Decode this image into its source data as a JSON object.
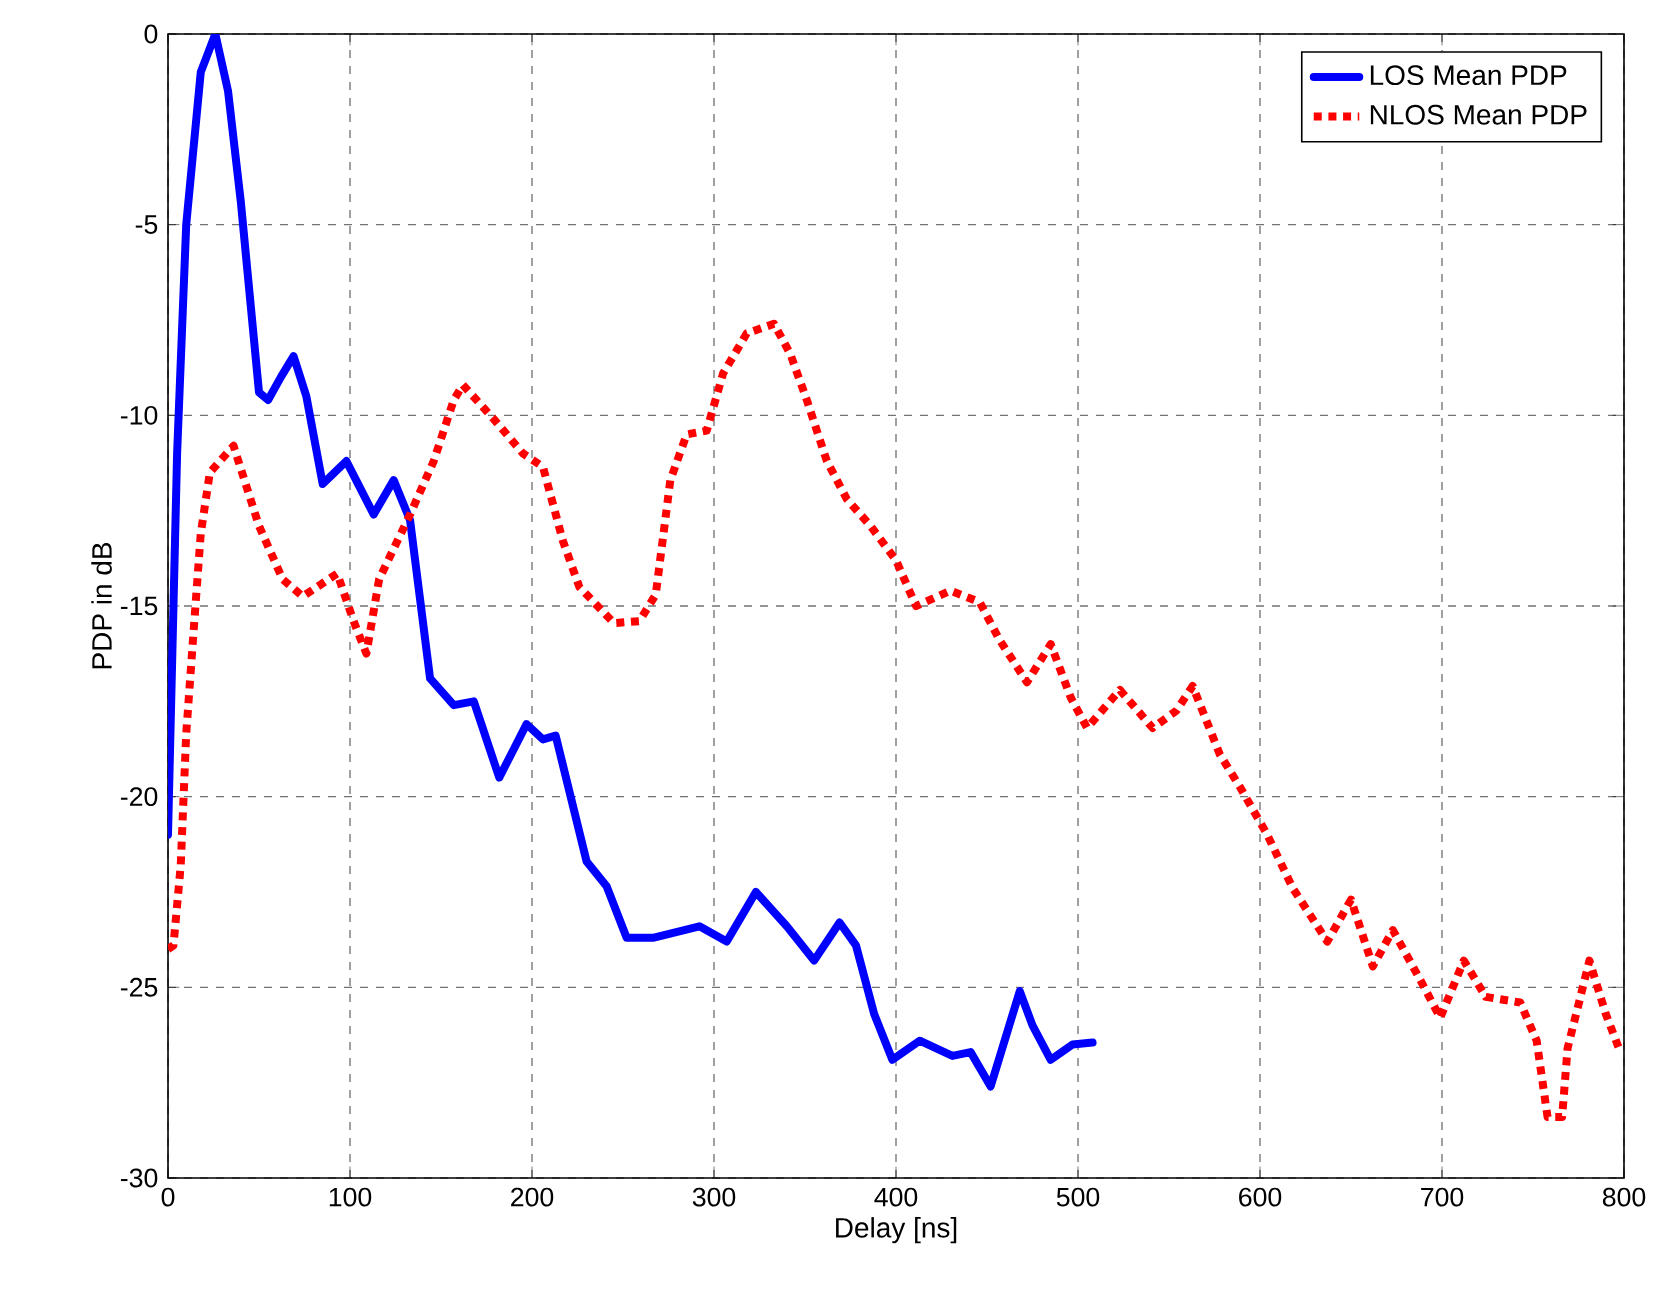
{
  "chart_data": {
    "type": "line",
    "xlabel": "Delay [ns]",
    "ylabel": "PDP in dB",
    "xlim": [
      0,
      800
    ],
    "ylim": [
      -30,
      0
    ],
    "xticks": [
      0,
      100,
      200,
      300,
      400,
      500,
      600,
      700,
      800
    ],
    "yticks": [
      -30,
      -25,
      -20,
      -15,
      -10,
      -5,
      0
    ],
    "grid": true,
    "legend": "top right",
    "marker": "none",
    "series": [
      {
        "name": "LOS Mean PDP",
        "color": "#0000ff",
        "line_style": "solid",
        "x": [
          0,
          5,
          10,
          18,
          26,
          33,
          40,
          50,
          55,
          62,
          69,
          76,
          85,
          98,
          113,
          124,
          133,
          144,
          157,
          168,
          182,
          197,
          206,
          213,
          230,
          241,
          252,
          267,
          292,
          307,
          323,
          340,
          355,
          369,
          378,
          388,
          398,
          413,
          431,
          441,
          452,
          468,
          475,
          485,
          497,
          508
        ],
        "values": [
          -21,
          -11,
          -5,
          -1,
          0,
          -1.5,
          -4.4,
          -9.4,
          -9.6,
          -9.0,
          -8.45,
          -9.5,
          -11.8,
          -11.2,
          -12.6,
          -11.7,
          -12.75,
          -16.9,
          -17.6,
          -17.5,
          -19.5,
          -18.1,
          -18.5,
          -18.4,
          -21.7,
          -22.35,
          -23.7,
          -23.7,
          -23.4,
          -23.8,
          -22.5,
          -23.4,
          -24.3,
          -23.3,
          -23.9,
          -25.7,
          -26.9,
          -26.4,
          -26.8,
          -26.7,
          -27.6,
          -25.1,
          -26.0,
          -26.9,
          -26.5,
          -26.45
        ]
      },
      {
        "name": "NLOS Mean PDP",
        "color": "#ff0000",
        "line_style": "dotted",
        "x": [
          0,
          3,
          7,
          10,
          14,
          18,
          23,
          36,
          50,
          63,
          74,
          93,
          102,
          109,
          116,
          133,
          146,
          157,
          162,
          179,
          195,
          206,
          217,
          226,
          245,
          259,
          268,
          276,
          285,
          296,
          305,
          318,
          333,
          342,
          351,
          362,
          373,
          386,
          400,
          411,
          430,
          446,
          457,
          472,
          485,
          496,
          505,
          523,
          541,
          554,
          563,
          578,
          589,
          604,
          618,
          637,
          650,
          662,
          673,
          688,
          699,
          712,
          724,
          743,
          752,
          758,
          766,
          769,
          781,
          790,
          798
        ],
        "values": [
          -24,
          -23.9,
          -21.8,
          -18.35,
          -15.7,
          -13.1,
          -11.5,
          -10.8,
          -12.9,
          -14.3,
          -14.75,
          -14.15,
          -15.4,
          -16.25,
          -14.3,
          -12.6,
          -11.2,
          -9.6,
          -9.2,
          -10.1,
          -11.0,
          -11.35,
          -13.3,
          -14.5,
          -15.45,
          -15.4,
          -14.7,
          -11.7,
          -10.5,
          -10.4,
          -8.9,
          -7.85,
          -7.6,
          -8.4,
          -9.6,
          -11.2,
          -12.2,
          -12.9,
          -13.8,
          -15.0,
          -14.6,
          -14.9,
          -15.9,
          -17.0,
          -16.0,
          -17.4,
          -18.2,
          -17.2,
          -18.2,
          -17.75,
          -17.1,
          -18.9,
          -19.75,
          -21.0,
          -22.4,
          -23.8,
          -22.7,
          -24.45,
          -23.5,
          -24.8,
          -25.8,
          -24.3,
          -25.25,
          -25.4,
          -26.4,
          -28.4,
          -28.4,
          -26.6,
          -24.3,
          -25.7,
          -26.7
        ]
      }
    ]
  }
}
